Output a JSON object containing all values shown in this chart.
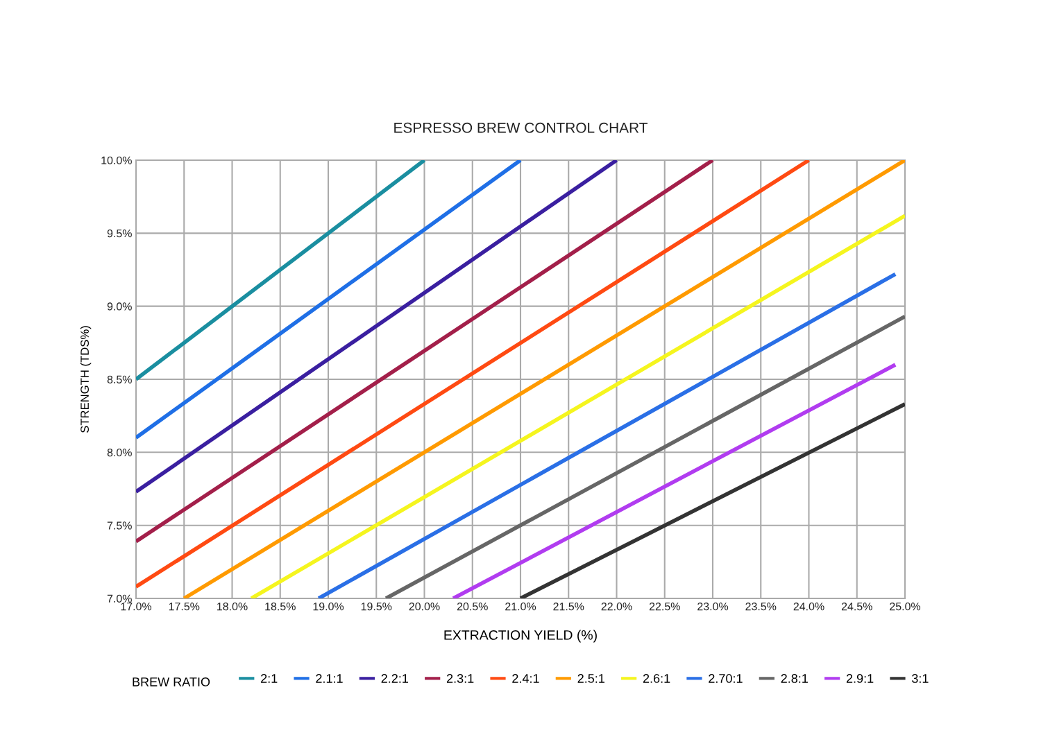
{
  "chart_data": {
    "type": "line",
    "title": "ESPRESSO BREW CONTROL CHART",
    "xlabel": "EXTRACTION YIELD (%)",
    "ylabel": "STRENGTH (TDS%)",
    "legend_title": "BREW RATIO",
    "xlim": [
      17.0,
      25.0
    ],
    "ylim": [
      7.0,
      10.0
    ],
    "xticks": [
      {
        "value": 17.0,
        "label": "17.0%"
      },
      {
        "value": 17.5,
        "label": "17.5%"
      },
      {
        "value": 18.0,
        "label": "18.0%"
      },
      {
        "value": 18.5,
        "label": "18.5%"
      },
      {
        "value": 19.0,
        "label": "19.0%"
      },
      {
        "value": 19.5,
        "label": "19.5%"
      },
      {
        "value": 20.0,
        "label": "20.0%"
      },
      {
        "value": 20.5,
        "label": "20.5%"
      },
      {
        "value": 21.0,
        "label": "21.0%"
      },
      {
        "value": 21.5,
        "label": "21.5%"
      },
      {
        "value": 22.0,
        "label": "22.0%"
      },
      {
        "value": 22.5,
        "label": "22.5%"
      },
      {
        "value": 23.0,
        "label": "23.0%"
      },
      {
        "value": 23.5,
        "label": "23.5%"
      },
      {
        "value": 24.0,
        "label": "24.0%"
      },
      {
        "value": 24.5,
        "label": "24.5%"
      },
      {
        "value": 25.0,
        "label": "25.0%"
      }
    ],
    "yticks": [
      {
        "value": 7.0,
        "label": "7.0%"
      },
      {
        "value": 7.5,
        "label": "7.5%"
      },
      {
        "value": 8.0,
        "label": "8.0%"
      },
      {
        "value": 8.5,
        "label": "8.5%"
      },
      {
        "value": 9.0,
        "label": "9.0%"
      },
      {
        "value": 9.5,
        "label": "9.5%"
      },
      {
        "value": 10.0,
        "label": "10.0%"
      }
    ],
    "grid": true,
    "legend": "bottom",
    "marker": "none",
    "line_style": "solid",
    "series": [
      {
        "name": "2:1",
        "color": "#1a8ea0",
        "x": [
          17.0,
          20.0
        ],
        "values": [
          8.5,
          10.0
        ]
      },
      {
        "name": "2.1:1",
        "color": "#1f6fe6",
        "x": [
          17.0,
          21.0
        ],
        "values": [
          8.1,
          10.0
        ]
      },
      {
        "name": "2.2:1",
        "color": "#3a1fa0",
        "x": [
          17.0,
          22.0
        ],
        "values": [
          7.73,
          10.0
        ]
      },
      {
        "name": "2.3:1",
        "color": "#a31f4a",
        "x": [
          17.0,
          23.0
        ],
        "values": [
          7.39,
          10.0
        ]
      },
      {
        "name": "2.4:1",
        "color": "#ff4a12",
        "x": [
          17.0,
          24.0
        ],
        "values": [
          7.08,
          10.0
        ]
      },
      {
        "name": "2.5:1",
        "color": "#ff9a00",
        "x": [
          17.5,
          25.0
        ],
        "values": [
          7.0,
          10.0
        ]
      },
      {
        "name": "2.6:1",
        "color": "#f5f51e",
        "x": [
          18.2,
          25.0
        ],
        "values": [
          7.0,
          9.62
        ]
      },
      {
        "name": "2.70:1",
        "color": "#2a6fe6",
        "x": [
          18.9,
          24.9
        ],
        "values": [
          7.0,
          9.22
        ]
      },
      {
        "name": "2.8:1",
        "color": "#666666",
        "x": [
          19.6,
          25.0
        ],
        "values": [
          7.0,
          8.93
        ]
      },
      {
        "name": "2.9:1",
        "color": "#b13cf0",
        "x": [
          20.3,
          24.9
        ],
        "values": [
          7.0,
          8.6
        ]
      },
      {
        "name": "3:1",
        "color": "#333333",
        "x": [
          21.0,
          25.0
        ],
        "values": [
          7.0,
          8.33
        ]
      }
    ]
  }
}
